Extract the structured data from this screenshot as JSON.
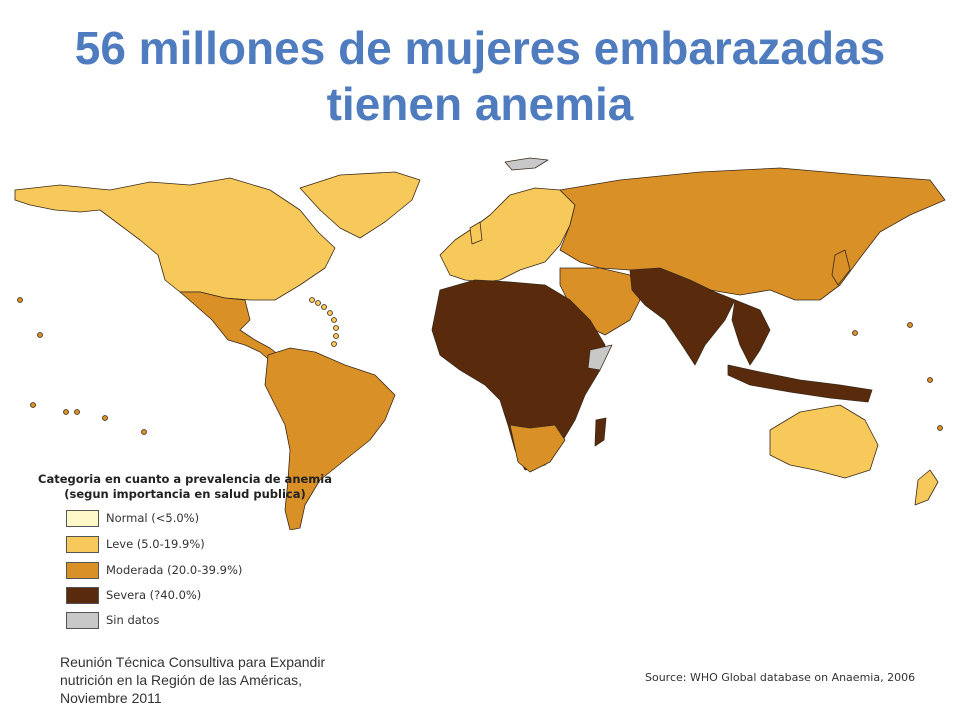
{
  "title": {
    "line1": "56 millones de mujeres embarazadas",
    "line2": "tienen anemia"
  },
  "legend": {
    "title_line1": "Categoria en cuanto a prevalencia de anemia",
    "title_line2": "(segun importancia en salud publica)",
    "items": [
      {
        "label": "Normal (<5.0%)",
        "color": "#fff8c8"
      },
      {
        "label": "Leve (5.0-19.9%)",
        "color": "#f7c85a"
      },
      {
        "label": "Moderada (20.0-39.9%)",
        "color": "#d99026"
      },
      {
        "label": "Severa (?40.0%)",
        "color": "#5a2a0c"
      },
      {
        "label": "Sin datos",
        "color": "#c8c8c8"
      }
    ]
  },
  "map": {
    "regions": [
      {
        "name": "north-america",
        "category": "Leve (5.0-19.9%)"
      },
      {
        "name": "greenland",
        "category": "Leve (5.0-19.9%)"
      },
      {
        "name": "mexico-central-america",
        "category": "Moderada (20.0-39.9%)"
      },
      {
        "name": "south-america",
        "category": "Moderada (20.0-39.9%)"
      },
      {
        "name": "europe",
        "category": "Leve (5.0-19.9%)"
      },
      {
        "name": "russia-asia",
        "category": "Moderada (20.0-39.9%)"
      },
      {
        "name": "africa",
        "category": "Severa (?40.0%)"
      },
      {
        "name": "south-asia",
        "category": "Severa (?40.0%)"
      },
      {
        "name": "southeast-asia",
        "category": "Severa (?40.0%)"
      },
      {
        "name": "australia",
        "category": "Leve (5.0-19.9%)"
      },
      {
        "name": "svalbard",
        "category": "Sin datos"
      }
    ]
  },
  "footer": {
    "line1": "Reunión Técnica Consultiva para Expandir",
    "line2": "nutrición en la Región de las Américas,",
    "line3": "Noviembre 2011"
  },
  "source": "Source: WHO Global database on Anaemia, 2006"
}
